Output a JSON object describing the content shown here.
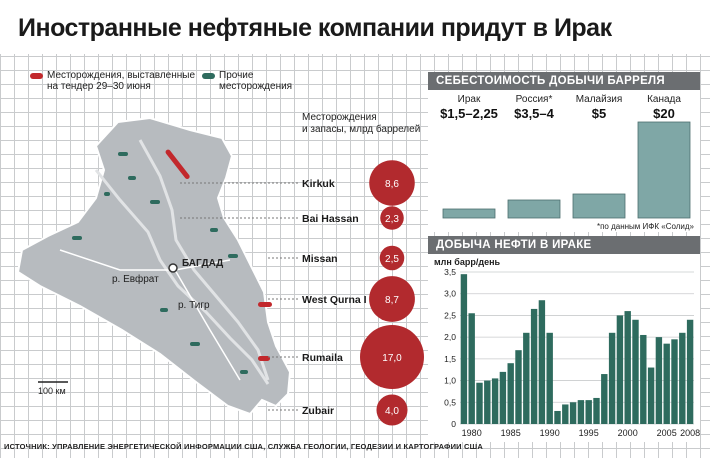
{
  "title": "Иностранные нефтяные компании придут в Ирак",
  "legend": {
    "tender_label_line1": "Месторождения, выставленные",
    "tender_label_line2": "на тендер 29–30 июня",
    "other_label_line1": "Прочие",
    "other_label_line2": "месторождения",
    "tender_color": "#c2282c",
    "other_color": "#2e6b5e"
  },
  "fields_header_line1": "Месторождения",
  "fields_header_line2": "и запасы, млрд баррелей",
  "map": {
    "capital": "БАГДАД",
    "river_euphrates": "р. Евфрат",
    "river_tigris": "р. Тигр",
    "scale": "100 км"
  },
  "source": "ИСТОЧНИК: УПРАВЛЕНИЕ ЭНЕРГЕТИЧЕСКОЙ ИНФОРМАЦИИ США, СЛУЖБА ГЕОЛОГИИ, ГЕОДЕЗИИ И КАРТОГРАФИИ США",
  "chart_data": [
    {
      "type": "bubble",
      "title": "Месторождения и запасы, млрд баррелей",
      "categories": [
        "Kirkuk",
        "Bai Hassan",
        "Missan",
        "West Qurna I",
        "Rumaila",
        "Zubair"
      ],
      "values": [
        8.6,
        2.3,
        2.5,
        8.7,
        17.0,
        4.0
      ],
      "labels": [
        "8,6",
        "2,3",
        "2,5",
        "8,7",
        "17,0",
        "4,0"
      ],
      "color": "#b22a2e"
    },
    {
      "type": "bar",
      "title": "СЕБЕСТОИМОСТЬ ДОБЫЧИ БАРРЕЛЯ НЕФТИ",
      "categories": [
        "Ирак",
        "Россия*",
        "Малайзия",
        "Канада"
      ],
      "value_labels": [
        "$1,5–2,25",
        "$3,5–4",
        "$5",
        "$20"
      ],
      "values": [
        1.875,
        3.75,
        5,
        20
      ],
      "note": "*по данным ИФК «Солид»",
      "color": "#7fa7a6"
    },
    {
      "type": "bar",
      "title": "ДОБЫЧА НЕФТИ В ИРАКЕ",
      "ylabel": "млн барр/день",
      "ylim": [
        0,
        3.5
      ],
      "yticks": [
        "0",
        "0,5",
        "1,0",
        "1,5",
        "2,0",
        "2,5",
        "3,0",
        "3,5"
      ],
      "xtick_labels": [
        "1980",
        "1985",
        "1990",
        "1995",
        "2000",
        "2005",
        "2008"
      ],
      "grid": true,
      "color": "#2e6b5e",
      "x": [
        1979,
        1980,
        1981,
        1982,
        1983,
        1984,
        1985,
        1986,
        1987,
        1988,
        1989,
        1990,
        1991,
        1992,
        1993,
        1994,
        1995,
        1996,
        1997,
        1998,
        1999,
        2000,
        2001,
        2002,
        2003,
        2004,
        2005,
        2006,
        2007,
        2008
      ],
      "values": [
        3.45,
        2.55,
        0.95,
        1.0,
        1.05,
        1.2,
        1.4,
        1.7,
        2.1,
        2.65,
        2.85,
        2.1,
        0.3,
        0.45,
        0.5,
        0.55,
        0.55,
        0.6,
        1.15,
        2.1,
        2.5,
        2.6,
        2.4,
        2.05,
        1.3,
        2.0,
        1.85,
        1.95,
        2.1,
        2.4
      ]
    }
  ]
}
